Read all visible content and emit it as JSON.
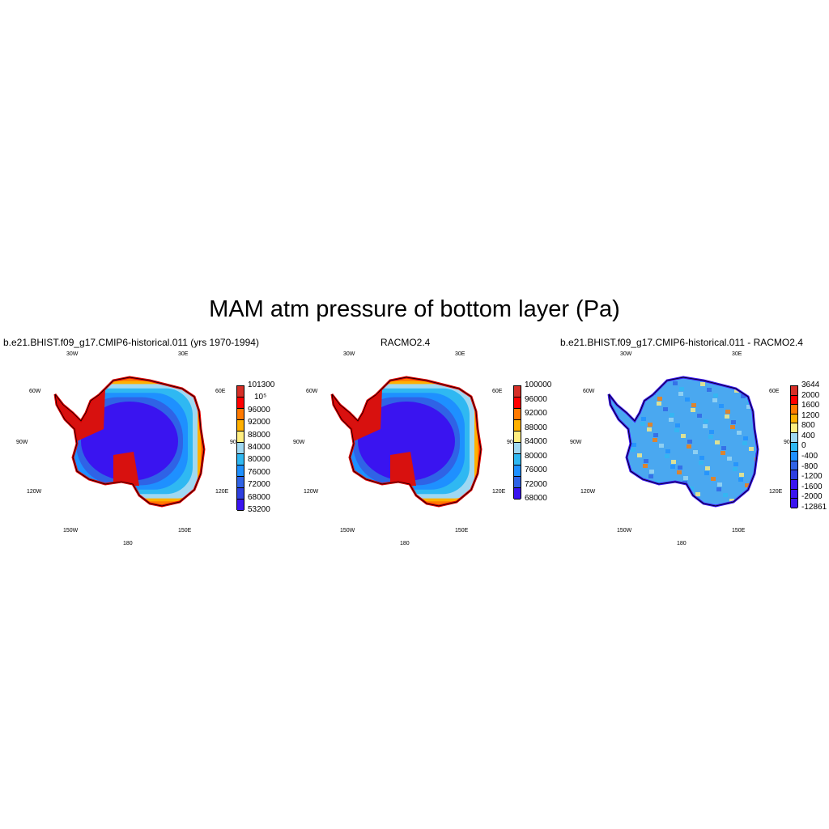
{
  "title": "MAM atm pressure of bottom layer (Pa)",
  "lon_labels": {
    "w30": "30W",
    "e30": "30E",
    "w60": "60W",
    "e60": "60E",
    "w90": "90W",
    "e90": "90E",
    "w120": "120W",
    "e120": "120E",
    "w150": "150W",
    "e150": "150E",
    "s180": "180"
  },
  "panels": [
    {
      "id": "model",
      "title": "b.e21.BHIST.f09_g17.CMIP6-historical.011 (yrs 1970-1994)",
      "field": "pressure",
      "colorbar": {
        "colors": [
          "#d62f27",
          "#ff0000",
          "#ff7a00",
          "#ffb000",
          "#ffee80",
          "#9fd8f2",
          "#2fb8f2",
          "#1e90ff",
          "#2f63e6",
          "#2e3fe0",
          "#3a14f0"
        ],
        "labels": [
          "101300",
          "10⁵",
          "96000",
          "92000",
          "88000",
          "84000",
          "80000",
          "76000",
          "72000",
          "68000",
          "53200"
        ]
      }
    },
    {
      "id": "obs",
      "title": "RACMO2.4",
      "field": "pressure",
      "colorbar": {
        "colors": [
          "#d62f27",
          "#ff0000",
          "#ff7a00",
          "#ffb000",
          "#ffee80",
          "#9fd8f2",
          "#2fb8f2",
          "#1e90ff",
          "#2f63e6",
          "#3a14f0"
        ],
        "labels": [
          "100000",
          "96000",
          "92000",
          "88000",
          "84000",
          "80000",
          "76000",
          "72000",
          "68000"
        ]
      }
    },
    {
      "id": "diff",
      "title": "b.e21.BHIST.f09_g17.CMIP6-historical.011 - RACMO2.4",
      "field": "difference",
      "colorbar": {
        "colors": [
          "#d62f27",
          "#ff0000",
          "#ff7a00",
          "#ffb000",
          "#ffee80",
          "#9fd8f2",
          "#2fb8f2",
          "#1e90ff",
          "#2f63e6",
          "#2e3fe0",
          "#3a14f0"
        ],
        "labels": [
          "3644",
          "2000",
          "1600",
          "1200",
          "800",
          "400",
          "0",
          "-400",
          "-800",
          "-1200",
          "-1600",
          "-2000",
          "-12861"
        ]
      }
    }
  ]
}
